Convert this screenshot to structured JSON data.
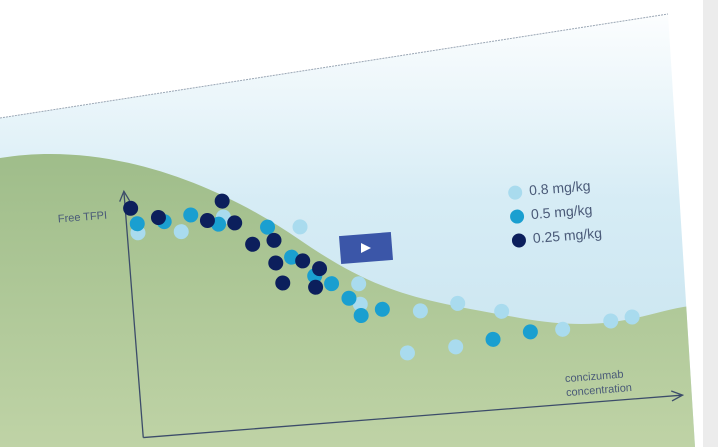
{
  "chart_data": {
    "type": "scatter",
    "y_label": "Free TFPI",
    "x_label": [
      "concizumab",
      "concentration"
    ],
    "xlim": [
      0,
      100
    ],
    "ylim": [
      0,
      110
    ],
    "series": [
      {
        "name": "0.8 mg/kg",
        "color": "#a9dbee",
        "x": [
          2,
          10,
          18,
          32,
          35,
          42,
          42,
          53,
          60,
          68,
          50,
          59,
          79,
          88,
          92
        ],
        "y": [
          90,
          89,
          94,
          87,
          68,
          60,
          51,
          46,
          48,
          43,
          28,
          29,
          33,
          35,
          36
        ]
      },
      {
        "name": "0.5 mg/kg",
        "color": "#1a9fd0",
        "x": [
          2,
          7,
          12,
          17,
          26,
          30,
          34,
          37,
          40,
          42,
          46,
          66,
          73
        ],
        "y": [
          94,
          94,
          96,
          91,
          88,
          74,
          65,
          61,
          54,
          46,
          48,
          31,
          33
        ]
      },
      {
        "name": "0.25 mg/kg",
        "color": "#0c1f5c",
        "x": [
          1,
          6,
          15,
          18,
          20,
          23,
          27,
          27,
          32,
          28,
          34,
          35
        ],
        "y": [
          101,
          96,
          93,
          101,
          91,
          81,
          82,
          72,
          72,
          63,
          60,
          68
        ]
      }
    ]
  }
}
